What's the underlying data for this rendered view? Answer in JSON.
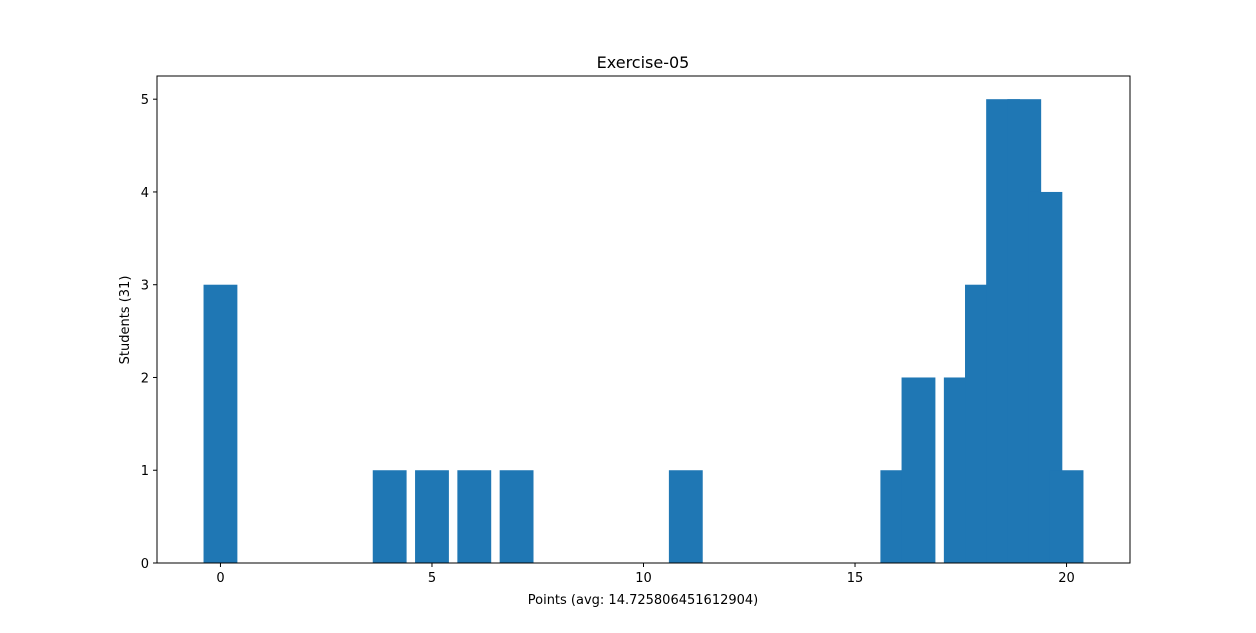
{
  "chart_data": {
    "type": "bar",
    "title": "Exercise-05",
    "xlabel": "Points (avg: 14.725806451612904)",
    "ylabel": "Students (31)",
    "xlim": [
      -1.5,
      21.5
    ],
    "ylim": [
      0,
      5.25
    ],
    "xticks": [
      0,
      5,
      10,
      15,
      20
    ],
    "yticks": [
      0,
      1,
      2,
      3,
      4,
      5
    ],
    "bar_width": 0.8,
    "color": "#1f77b4",
    "grid": false,
    "series": [
      {
        "x": [
          0,
          4,
          5,
          6,
          7,
          11,
          16,
          16.5,
          17.5,
          18,
          18.5,
          19,
          19.5,
          20
        ],
        "values": [
          3,
          1,
          1,
          1,
          1,
          1,
          1,
          2,
          2,
          3,
          5,
          5,
          4,
          1
        ]
      }
    ]
  }
}
